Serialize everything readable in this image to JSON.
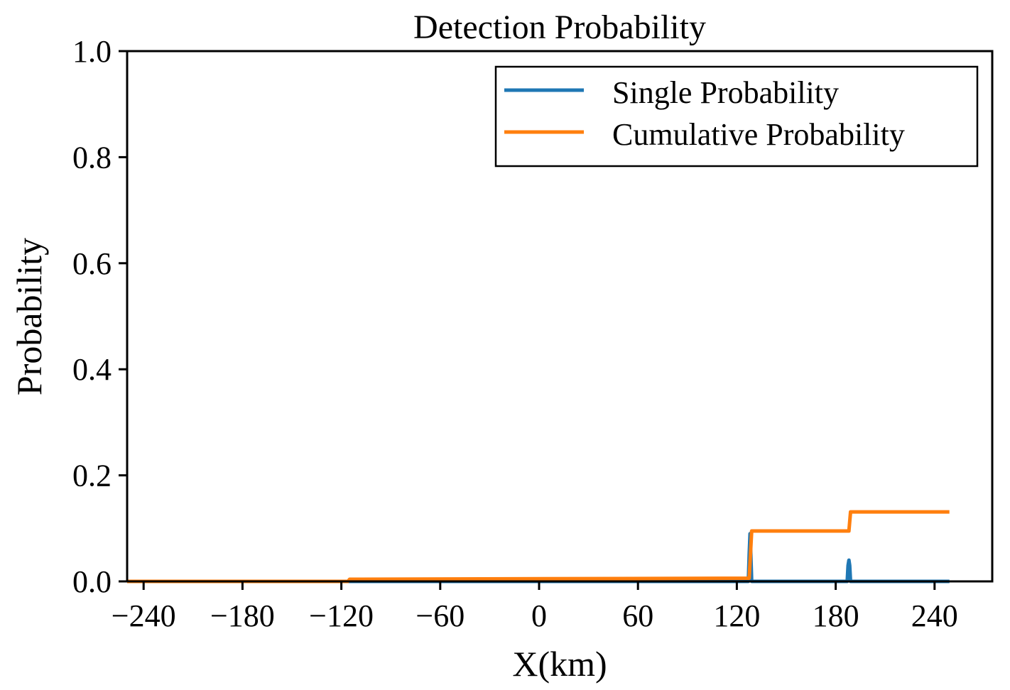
{
  "chart_data": {
    "type": "line",
    "title": "Detection Probability",
    "xlabel": "X(km)",
    "ylabel": "Probability",
    "xlim": [
      -250,
      275
    ],
    "ylim": [
      0,
      1.0
    ],
    "xticks": [
      -240,
      -180,
      -120,
      -60,
      0,
      60,
      120,
      180,
      240
    ],
    "xtick_labels": [
      "−240",
      "−180",
      "−120",
      "−60",
      "0",
      "60",
      "120",
      "180",
      "240"
    ],
    "yticks": [
      0.0,
      0.2,
      0.4,
      0.6,
      0.8,
      1.0
    ],
    "ytick_labels": [
      "0.0",
      "0.2",
      "0.4",
      "0.6",
      "0.8",
      "1.0"
    ],
    "grid": false,
    "legend_position": "top-right",
    "series": [
      {
        "name": "Single Probability",
        "color": "#1f77b4",
        "x": [
          -250,
          127.0,
          127.5,
          128.0,
          128.5,
          129.0,
          187.0,
          187.5,
          188.0,
          188.5,
          189.0,
          249
        ],
        "y": [
          0.0,
          0.0,
          0.05,
          0.09,
          0.05,
          0.0,
          0.0,
          0.03,
          0.04,
          0.03,
          0.0,
          0.0
        ]
      },
      {
        "name": "Cumulative Probability",
        "color": "#ff7f0e",
        "x": [
          -250,
          -116,
          -115,
          127.5,
          129.0,
          188.0,
          189.0,
          249
        ],
        "y": [
          0.0,
          0.0,
          0.004,
          0.006,
          0.095,
          0.095,
          0.131,
          0.131
        ]
      }
    ]
  }
}
